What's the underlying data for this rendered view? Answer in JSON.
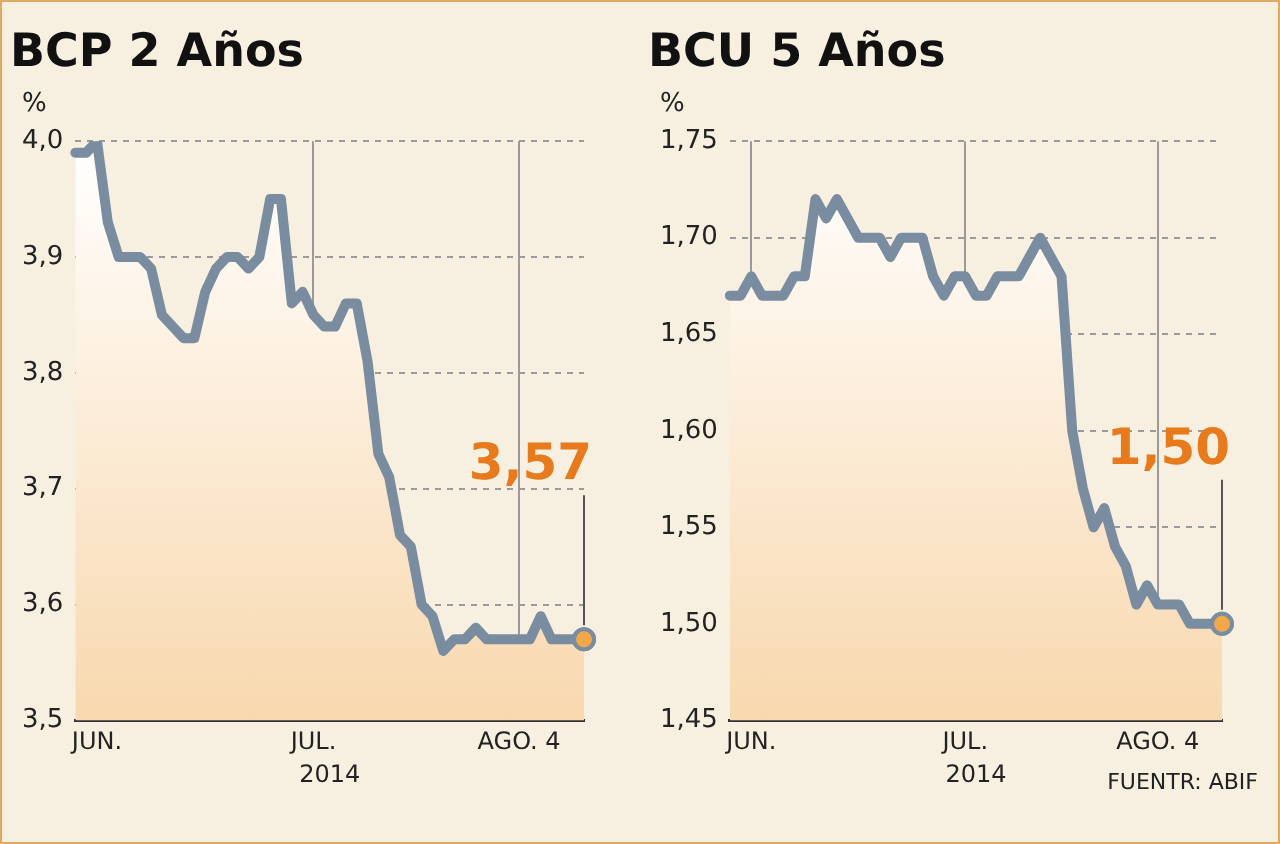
{
  "chart_data": [
    {
      "type": "area",
      "title": "BCP 2 Años",
      "ylabel": "%",
      "xlabel": "2014",
      "categories": [
        null,
        null,
        "JUN.",
        null,
        null,
        null,
        null,
        null,
        null,
        null,
        null,
        null,
        null,
        null,
        null,
        null,
        null,
        null,
        null,
        null,
        null,
        null,
        "JUL.",
        null,
        null,
        null,
        null,
        null,
        null,
        null,
        null,
        null,
        null,
        null,
        null,
        null,
        null,
        null,
        null,
        null,
        null,
        "AGO. 4",
        null,
        null,
        null,
        null,
        null,
        null
      ],
      "series": [
        {
          "color": "#7a8ca0",
          "values": [
            3.99,
            3.99,
            4.0,
            3.93,
            3.9,
            3.9,
            3.9,
            3.89,
            3.85,
            3.84,
            3.83,
            3.83,
            3.87,
            3.89,
            3.9,
            3.9,
            3.89,
            3.9,
            3.95,
            3.95,
            3.86,
            3.87,
            3.85,
            3.84,
            3.84,
            3.86,
            3.86,
            3.81,
            3.73,
            3.71,
            3.66,
            3.65,
            3.6,
            3.59,
            3.56,
            3.57,
            3.57,
            3.58,
            3.57,
            3.57,
            3.57,
            3.57,
            3.57,
            3.59,
            3.57,
            3.57,
            3.57,
            3.57
          ],
          "value_labels": [
            null,
            null,
            null,
            null,
            null,
            null,
            null,
            null,
            null,
            null,
            null,
            null,
            null,
            null,
            null,
            null,
            null,
            null,
            null,
            null,
            null,
            null,
            null,
            null,
            null,
            null,
            null,
            null,
            null,
            null,
            null,
            null,
            null,
            null,
            null,
            null,
            null,
            null,
            null,
            null,
            null,
            null,
            null,
            null,
            null,
            null,
            null,
            "3,57"
          ]
        }
      ],
      "ylim": [
        3.5,
        4.0
      ],
      "yticks": [
        {
          "value": 3.5,
          "label": "3,5"
        },
        {
          "value": 3.6,
          "label": "3,6"
        },
        {
          "value": 3.7,
          "label": "3,7"
        },
        {
          "value": 3.8,
          "label": "3,8"
        },
        {
          "value": 3.9,
          "label": "3,9"
        },
        {
          "value": 4.0,
          "label": "4,0"
        }
      ],
      "grid": true,
      "legend": false
    },
    {
      "type": "area",
      "title": "BCU 5 Años",
      "ylabel": "%",
      "xlabel": "2014",
      "categories": [
        null,
        null,
        "JUN.",
        null,
        null,
        null,
        null,
        null,
        null,
        null,
        null,
        null,
        null,
        null,
        null,
        null,
        null,
        null,
        null,
        null,
        null,
        null,
        "JUL.",
        null,
        null,
        null,
        null,
        null,
        null,
        null,
        null,
        null,
        null,
        null,
        null,
        null,
        null,
        null,
        null,
        null,
        "AGO. 4",
        null,
        null,
        null,
        null,
        null,
        null
      ],
      "series": [
        {
          "color": "#7a8ca0",
          "values": [
            1.67,
            1.67,
            1.68,
            1.67,
            1.67,
            1.67,
            1.68,
            1.68,
            1.72,
            1.71,
            1.72,
            1.71,
            1.7,
            1.7,
            1.7,
            1.69,
            1.7,
            1.7,
            1.7,
            1.68,
            1.67,
            1.68,
            1.68,
            1.67,
            1.67,
            1.68,
            1.68,
            1.68,
            1.69,
            1.7,
            1.69,
            1.68,
            1.6,
            1.57,
            1.55,
            1.56,
            1.54,
            1.53,
            1.51,
            1.52,
            1.51,
            1.51,
            1.51,
            1.5,
            1.5,
            1.5,
            1.5
          ],
          "value_labels": [
            null,
            null,
            null,
            null,
            null,
            null,
            null,
            null,
            null,
            null,
            null,
            null,
            null,
            null,
            null,
            null,
            null,
            null,
            null,
            null,
            null,
            null,
            null,
            null,
            null,
            null,
            null,
            null,
            null,
            null,
            null,
            null,
            null,
            null,
            null,
            null,
            null,
            null,
            null,
            null,
            null,
            null,
            null,
            null,
            null,
            null,
            "1,50"
          ]
        }
      ],
      "ylim": [
        1.45,
        1.75
      ],
      "yticks": [
        {
          "value": 1.45,
          "label": "1,45"
        },
        {
          "value": 1.5,
          "label": "1,50"
        },
        {
          "value": 1.55,
          "label": "1,55"
        },
        {
          "value": 1.6,
          "label": "1,60"
        },
        {
          "value": 1.65,
          "label": "1,65"
        },
        {
          "value": 1.7,
          "label": "1,70"
        },
        {
          "value": 1.75,
          "label": "1,75"
        }
      ],
      "grid": true,
      "legend": false,
      "annotations": [
        "FUENTR: ABIF"
      ]
    }
  ]
}
